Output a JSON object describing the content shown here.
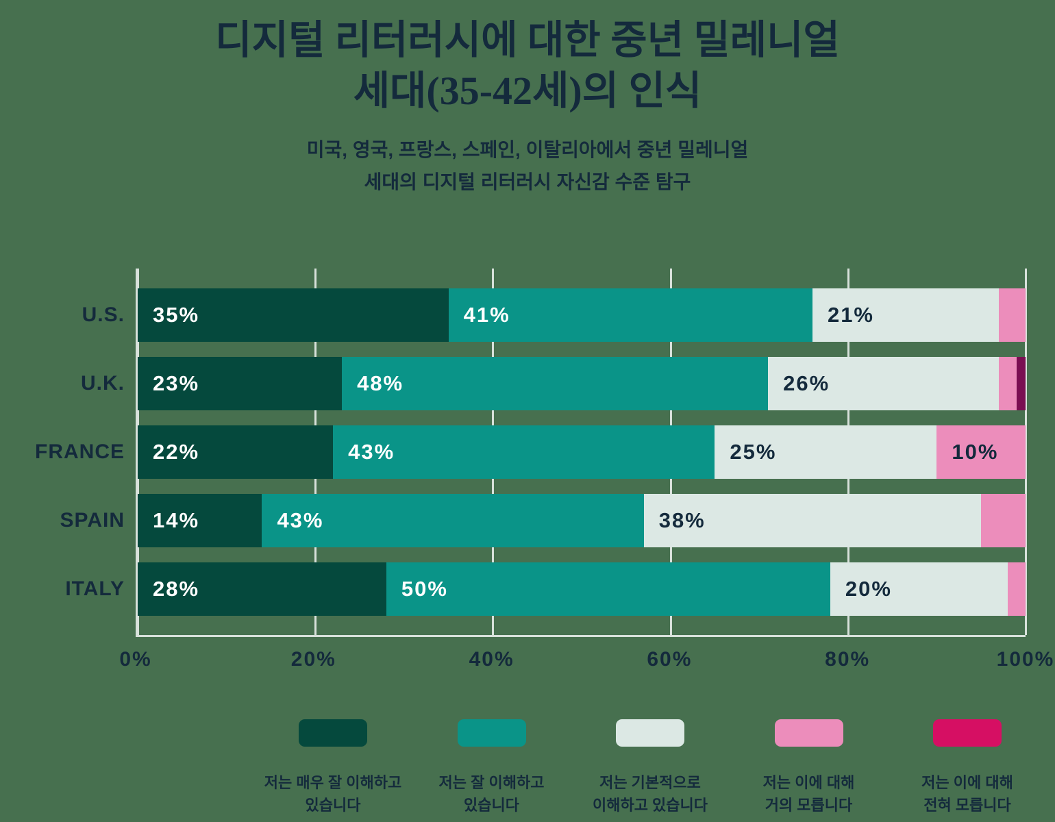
{
  "header": {
    "title": "디지털 리터러시에 대한 중년 밀레니얼\n세대(35-42세)의 인식",
    "subtitle": "미국, 영국, 프랑스, 스페인, 이탈리아에서 중년 밀레니얼\n세대의 디지털 리터러시 자신감 수준 탐구"
  },
  "colors": {
    "background": "#47704F",
    "text_navy": "#142A3C",
    "axis_grid": "#D8E1DB",
    "label_white": "#FFFFFF"
  },
  "chart_data": {
    "type": "bar",
    "orientation": "horizontal-stacked",
    "categories": [
      "U.S.",
      "U.K.",
      "FRANCE",
      "SPAIN",
      "ITALY"
    ],
    "series": [
      {
        "name": "저는 매우 잘 이해하고\n있습니다",
        "color": "#05493D",
        "bar_color": "#05493D",
        "label_color": "#FFFFFF",
        "values": [
          35,
          23,
          22,
          14,
          28
        ]
      },
      {
        "name": "저는 잘 이해하고\n있습니다",
        "color": "#0A9488",
        "bar_color": "#0A9488",
        "label_color": "#FFFFFF",
        "values": [
          41,
          48,
          43,
          43,
          50
        ]
      },
      {
        "name": "저는 기본적으로\n이해하고 있습니다",
        "color": "#DCE8E4",
        "bar_color": "#DCE8E4",
        "label_color": "#142A3C",
        "values": [
          21,
          26,
          25,
          38,
          20
        ]
      },
      {
        "name": "저는 이에 대해\n거의 모릅니다",
        "color": "#EC8DBB",
        "bar_color": "#EC8DBB",
        "label_color": "#142A3C",
        "values": [
          3,
          2,
          10,
          5,
          2
        ]
      },
      {
        "name": "저는 이에 대해\n전혀 모릅니다",
        "color": "#D60F63",
        "bar_color": "#7A0E52",
        "label_color": "#FFFFFF",
        "values": [
          0,
          1,
          0,
          0,
          0
        ]
      }
    ],
    "xticks": [
      "0%",
      "20%",
      "40%",
      "60%",
      "80%",
      "100%"
    ],
    "xlim": [
      0,
      100
    ],
    "grid": true,
    "label_min_value": 10,
    "value_suffix": "%",
    "legend_position": "bottom"
  }
}
